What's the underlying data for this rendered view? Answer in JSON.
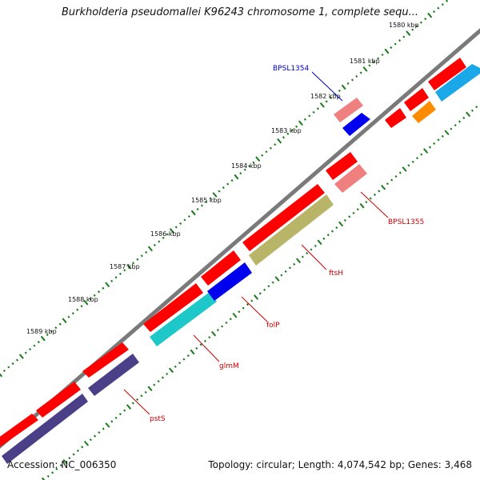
{
  "header": {
    "title": "Burkholderia pseudomallei K96243 chromosome 1, complete sequ..."
  },
  "footer": {
    "accession": "Accession: NC_006350",
    "summary": "Topology: circular; Length: 4,074,542 bp; Genes: 3,468"
  },
  "ruler": {
    "ticks": [
      "1580 kbp",
      "1581 kbp",
      "1582 kbp",
      "1583 kbp",
      "1584 kbp",
      "1585 kbp",
      "1586 kbp",
      "1587 kbp",
      "1588 kbp",
      "1589 kbp"
    ]
  },
  "feature_labels": {
    "bpsl1354": "BPSL1354",
    "bpsl1355": "BPSL1355",
    "ftsh": "ftsH",
    "folp": "folP",
    "glmm": "glmM",
    "psts": "pstS"
  },
  "colors": {
    "backbone": "#7a7a7a",
    "cds_forward": "#ff0000",
    "cds_light": "#f08080",
    "ftsh": "#b8b468",
    "folp": "#0000ee",
    "glmm": "#1ec8c8",
    "psts": "#4a4088",
    "orange": "#ff8c00",
    "cyan_small": "#1aa8e8",
    "dots": "#1a7a1a",
    "label_blue": "#0000cc",
    "label_red": "#cc0000"
  }
}
